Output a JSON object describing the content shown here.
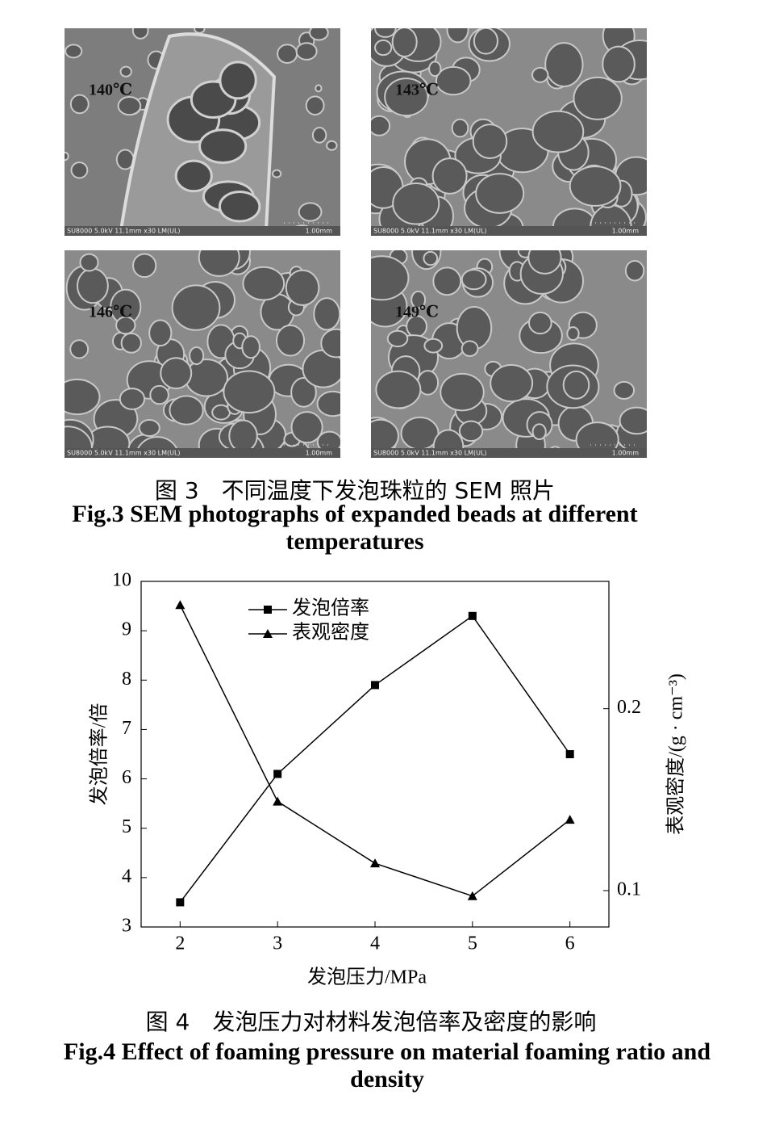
{
  "figure3": {
    "panels": [
      {
        "label": "140℃",
        "info": "SU8000 5.0kV 11.1mm x30 LM(UL)",
        "scale": "1.00mm"
      },
      {
        "label": "143℃",
        "info": "SU8000 5.0kV 11.1mm x30 LM(UL)",
        "scale": "1.00mm"
      },
      {
        "label": "146℃",
        "info": "SU8000 5.0kV 11.1mm x30 LM(UL)",
        "scale": "1.00mm"
      },
      {
        "label": "149℃",
        "info": "SU8000 5.0kV 11.1mm x30 LM(UL)",
        "scale": "1.00mm"
      }
    ],
    "caption_cn": "图 3　不同温度下发泡珠粒的 SEM 照片",
    "caption_en": "Fig.3 SEM photographs of expanded beads at different temperatures"
  },
  "chart_data": {
    "type": "line",
    "x_label": "发泡压力/MPa",
    "y_label": "发泡倍率/倍",
    "y2_label": "表观密度/(g · cm⁻³)",
    "x": [
      2,
      3,
      4,
      5,
      6
    ],
    "xlim": [
      1.6,
      6.4
    ],
    "xticks": [
      2,
      3,
      4,
      5,
      6
    ],
    "ylim": [
      3,
      10
    ],
    "yticks": [
      3,
      4,
      5,
      6,
      7,
      8,
      9,
      10
    ],
    "y2lim": [
      0.08,
      0.27
    ],
    "y2ticks": [
      0.1,
      0.2
    ],
    "series": [
      {
        "name": "发泡倍率",
        "color": "#000000",
        "marker": "square",
        "values": [
          3.5,
          6.1,
          7.9,
          9.3,
          6.5
        ]
      },
      {
        "name": "表观密度",
        "color": "#000000",
        "marker": "triangle",
        "axis": "y2",
        "values": [
          0.257,
          0.149,
          0.115,
          0.097,
          0.139
        ]
      }
    ]
  },
  "figure4": {
    "caption_cn": "图 4　发泡压力对材料发泡倍率及密度的影响",
    "caption_en": "Fig.4 Effect of foaming pressure on material foaming ratio and density"
  }
}
